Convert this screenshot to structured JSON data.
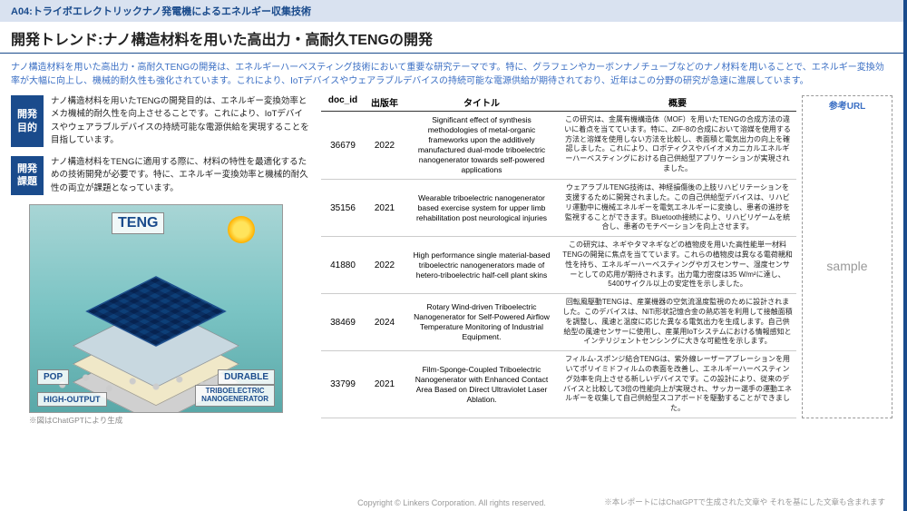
{
  "header": {
    "code": "A04:トライボエレクトリックナノ発電機によるエネルギー収集技術",
    "title": "開発トレンド:ナノ構造材料を用いた高出力・高耐久TENGの開発"
  },
  "intro": "ナノ構造材料を用いた高出力・高耐久TENGの開発は、エネルギーハーベスティング技術において重要な研究テーマです。特に、グラフェンやカーボンナノチューブなどのナノ材料を用いることで、エネルギー変換効率が大幅に向上し、機械的耐久性も強化されています。これにより、IoTデバイスやウェアラブルデバイスの持続可能な電源供給が期待されており、近年はこの分野の研究が急速に進展しています。",
  "left": {
    "purpose_label_l1": "開発",
    "purpose_label_l2": "目的",
    "purpose_text": "ナノ構造材料を用いたTENGの開発目的は、エネルギー変換効率とメカ機械的耐久性を向上させることです。これにより、IoTデバイスやウェアラブルデバイスの持続可能な電源供給を実現することを目指しています。",
    "issue_label_l1": "開発",
    "issue_label_l2": "課題",
    "issue_text": "ナノ構造材料をTENGに適用する際に、材料の特性を最適化するための技術開発が必要です。特に、エネルギー変換効率と機械的耐久性の両立が課題となっています。",
    "img_labels": {
      "teng": "TENG",
      "pop": "POP",
      "durable": "DURABLE",
      "high_output": "HIGH-OUTPUT",
      "nanogen_l1": "TRIBOELECTRIC",
      "nanogen_l2": "NANOGENERATOR"
    },
    "img_caption": "※図はChatGPTにより生成"
  },
  "table": {
    "headers": {
      "doc_id": "doc_id",
      "year": "出版年",
      "title": "タイトル",
      "summary": "概要",
      "ref": "参考URL"
    },
    "rows": [
      {
        "doc_id": "36679",
        "year": "2022",
        "title": "Significant effect of synthesis methodologies of metal-organic frameworks upon the additively manufactured dual-mode triboelectric nanogenerator towards self-powered applications",
        "summary": "この研究は、金属有機構造体（MOF）を用いたTENGの合成方法の違いに着点を当てています。特に、ZIF-8の合成において溶媒を使用する方法と溶媒を使用しない方法を比較し、表面積と電気出力の向上を確認しました。これにより、ロボティクスやバイオメカニカルエネルギーハーベスティングにおける自己供給型アプリケーションが実現されました。"
      },
      {
        "doc_id": "35156",
        "year": "2021",
        "title": "Wearable triboelectric nanogenerator based exercise system for upper limb rehabilitation post neurological injuries",
        "summary": "ウェアラブルTENG技術は、神経損傷後の上肢リハビリテーションを支援するために開発されました。この自己供給型デバイスは、リハビリ運動中に機械エネルギーを電気エネルギーに変換し、患者の進捗を監視することができます。Bluetooth接続により、リハビリゲームを統合し、患者のモチベーションを向上させます。"
      },
      {
        "doc_id": "41880",
        "year": "2022",
        "title": "High performance single material-based triboelectric nanogenerators made of hetero-triboelectric half-cell plant skins",
        "summary": "この研究は、ネギやタマネギなどの植物皮を用いた高性能単一材料TENGの開発に焦点を当てています。これらの植物皮は異なる電荷親和性を持ち、エネルギーハーベスティングやガスセンサー、湿度センサーとしての応用が期待されます。出力電力密度は35 W/m²に達し、5400サイクル以上の安定性を示しました。"
      },
      {
        "doc_id": "38469",
        "year": "2024",
        "title": "Rotary Wind-driven Triboelectric Nanogenerator for Self-Powered Airflow Temperature Monitoring of Industrial Equipment.",
        "summary": "回転風駆動TENGは、産業機器の空気流温度監視のために設計されました。このデバイスは、NiTi形状記憶合金の熱応答を利用して接触面積を調整し、風速と温度に応じた異なる電気出力を生成します。自己供給型の風速センサーに使用し、産業用IoTシステムにおける情報感知とインテリジェントセンシングに大きな可能性を示します。"
      },
      {
        "doc_id": "33799",
        "year": "2021",
        "title": "Film-Sponge-Coupled Triboelectric Nanogenerator with Enhanced Contact Area Based on Direct Ultraviolet Laser Ablation.",
        "summary": "フィルム-スポンジ結合TENGは、紫外線レーザーアブレーションを用いてポリイミドフィルムの表面を改善し、エネルギーハーベスティング効率を向上させる新しいデバイスです。この設計により、従来のデバイスと比較して3倍の性能向上が実現され、サッカー選手の運動エネルギーを収集して自己供給型スコアボードを駆動することができました。"
      }
    ],
    "sample_text": "sample"
  },
  "footer": {
    "copyright": "Copyright © Linkers Corporation. All rights reserved.",
    "note": "※本レポートにはChatGPTで生成された文章や それを基にした文章も含まれます"
  },
  "colors": {
    "brand_blue": "#1a4b8c",
    "link_blue": "#3b6fc4",
    "header_bg": "#d9e2f0"
  }
}
